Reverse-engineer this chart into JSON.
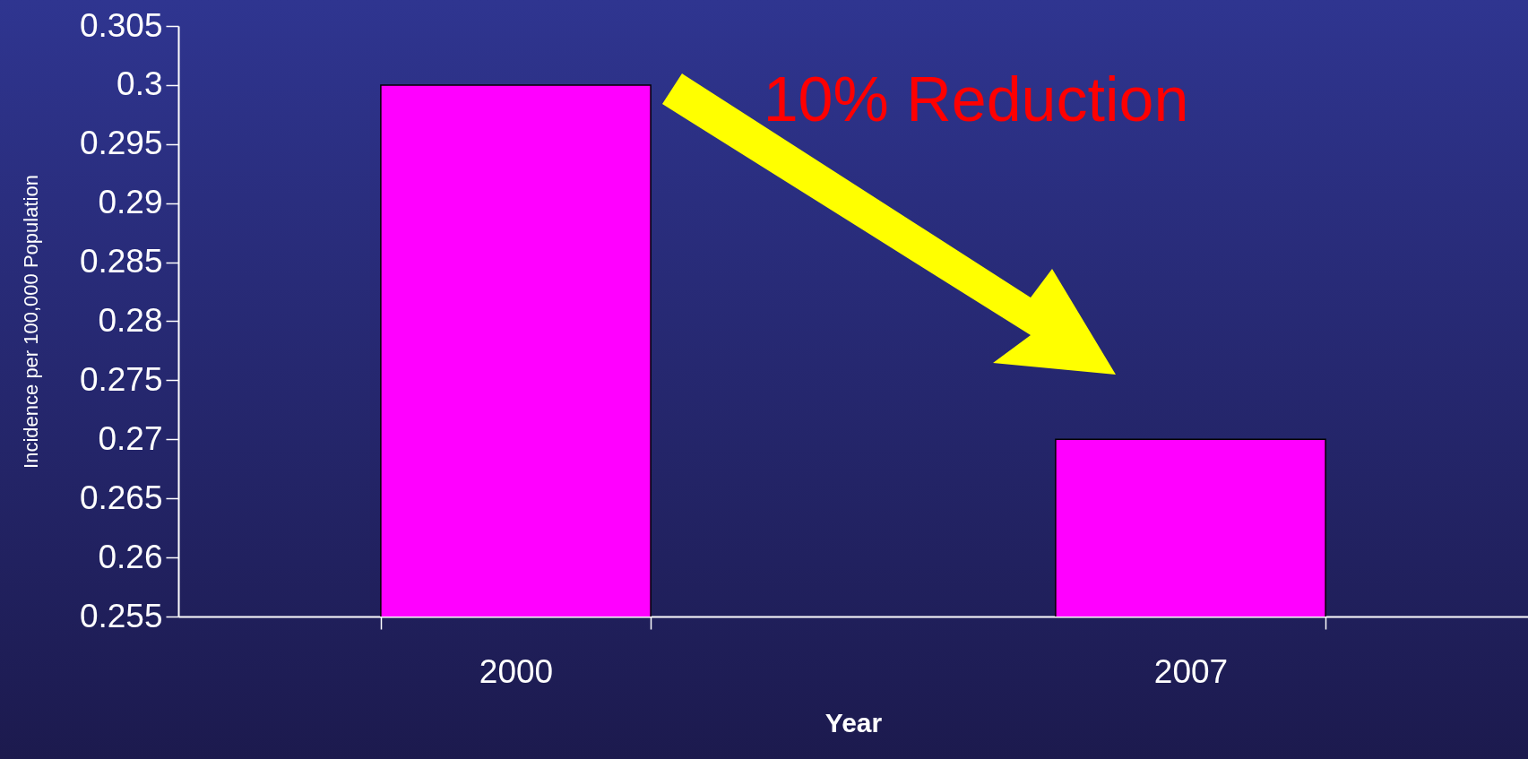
{
  "chart_data": {
    "type": "bar",
    "xlabel": "Year",
    "ylabel": "Incidence per 100,000 Population",
    "categories": [
      "2000",
      "2007"
    ],
    "values": [
      0.3,
      0.27
    ],
    "color": "#ff00ff",
    "ylim": [
      0.255,
      0.305
    ],
    "yticks": [
      0.255,
      0.26,
      0.265,
      0.27,
      0.275,
      0.28,
      0.285,
      0.29,
      0.295,
      0.3,
      0.305
    ],
    "annotations": [
      "10% Reduction"
    ]
  }
}
